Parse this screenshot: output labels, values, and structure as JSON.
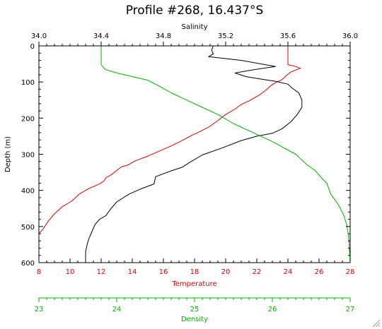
{
  "chart_data": {
    "type": "line",
    "title": "Profile #268, 16.437°S",
    "colors": {
      "temperature": "#dd0000",
      "salinity": "#000000",
      "density": "#00b000",
      "axis": "#000000"
    },
    "depth_axis": {
      "label": "Depth (m)",
      "ylim": [
        0,
        600
      ],
      "inverted": true,
      "ticks": [
        0,
        100,
        200,
        300,
        400,
        500,
        600
      ],
      "tick_labels": [
        "0",
        "100",
        "200",
        "300",
        "400",
        "500",
        "600"
      ]
    },
    "salinity_axis": {
      "label": "Salinity",
      "position": "top",
      "xlim": [
        34.0,
        36.0
      ],
      "ticks": [
        34.0,
        34.4,
        34.8,
        35.2,
        35.6,
        36.0
      ],
      "tick_labels": [
        "34.0",
        "34.4",
        "34.8",
        "35.2",
        "35.6",
        "36.0"
      ]
    },
    "temperature_axis": {
      "label": "Temperature",
      "position": "bottom",
      "xlim": [
        8,
        28
      ],
      "ticks": [
        8,
        10,
        12,
        14,
        16,
        18,
        20,
        22,
        24,
        26,
        28
      ],
      "tick_labels": [
        "8",
        "10",
        "12",
        "14",
        "16",
        "18",
        "20",
        "22",
        "24",
        "26",
        "28"
      ]
    },
    "density_axis": {
      "label": "Density",
      "position": "bottom-separate",
      "xlim": [
        23,
        27
      ],
      "ticks": [
        23,
        24,
        25,
        26,
        27
      ],
      "tick_labels": [
        "23",
        "24",
        "25",
        "26",
        "27"
      ]
    },
    "series": [
      {
        "key": "temperature",
        "axis": "temperature_axis",
        "points": [
          [
            24.0,
            0
          ],
          [
            24.0,
            5
          ],
          [
            24.0,
            25
          ],
          [
            24.0,
            52
          ],
          [
            24.5,
            57
          ],
          [
            24.8,
            62
          ],
          [
            24.2,
            72
          ],
          [
            23.9,
            82
          ],
          [
            23.6,
            94
          ],
          [
            23.2,
            102
          ],
          [
            22.9,
            110
          ],
          [
            22.6,
            122
          ],
          [
            22.2,
            135
          ],
          [
            21.6,
            150
          ],
          [
            21.0,
            162
          ],
          [
            20.6,
            175
          ],
          [
            20.0,
            190
          ],
          [
            19.4,
            210
          ],
          [
            18.9,
            225
          ],
          [
            18.3,
            238
          ],
          [
            17.8,
            248
          ],
          [
            17.2,
            262
          ],
          [
            16.6,
            275
          ],
          [
            15.8,
            290
          ],
          [
            15.0,
            305
          ],
          [
            14.2,
            318
          ],
          [
            13.7,
            330
          ],
          [
            13.3,
            335
          ],
          [
            13.0,
            345
          ],
          [
            12.6,
            358
          ],
          [
            12.3,
            365
          ],
          [
            12.2,
            373
          ],
          [
            12.0,
            380
          ],
          [
            11.2,
            395
          ],
          [
            10.6,
            410
          ],
          [
            10.1,
            430
          ],
          [
            9.5,
            445
          ],
          [
            9.0,
            465
          ],
          [
            8.6,
            485
          ],
          [
            8.3,
            505
          ],
          [
            8.0,
            520
          ]
        ]
      },
      {
        "key": "salinity",
        "axis": "salinity_axis",
        "points": [
          [
            35.12,
            0
          ],
          [
            35.11,
            12
          ],
          [
            35.12,
            22
          ],
          [
            35.09,
            30
          ],
          [
            35.3,
            40
          ],
          [
            35.52,
            57
          ],
          [
            35.38,
            66
          ],
          [
            35.26,
            75
          ],
          [
            35.33,
            85
          ],
          [
            35.43,
            92
          ],
          [
            35.52,
            98
          ],
          [
            35.6,
            106
          ],
          [
            35.63,
            118
          ],
          [
            35.67,
            130
          ],
          [
            35.69,
            150
          ],
          [
            35.69,
            170
          ],
          [
            35.66,
            190
          ],
          [
            35.62,
            210
          ],
          [
            35.56,
            230
          ],
          [
            35.5,
            242
          ],
          [
            35.4,
            250
          ],
          [
            35.3,
            262
          ],
          [
            35.18,
            282
          ],
          [
            35.05,
            302
          ],
          [
            34.97,
            322
          ],
          [
            34.92,
            336
          ],
          [
            34.85,
            346
          ],
          [
            34.75,
            362
          ],
          [
            34.74,
            382
          ],
          [
            34.66,
            395
          ],
          [
            34.58,
            410
          ],
          [
            34.5,
            432
          ],
          [
            34.46,
            452
          ],
          [
            34.43,
            470
          ],
          [
            34.39,
            480
          ],
          [
            34.36,
            495
          ],
          [
            34.34,
            515
          ],
          [
            34.32,
            535
          ],
          [
            34.31,
            550
          ],
          [
            34.3,
            570
          ],
          [
            34.3,
            600
          ]
        ]
      },
      {
        "key": "density",
        "axis": "density_axis",
        "points": [
          [
            23.8,
            0
          ],
          [
            23.8,
            30
          ],
          [
            23.8,
            52
          ],
          [
            23.85,
            65
          ],
          [
            24.0,
            75
          ],
          [
            24.2,
            85
          ],
          [
            24.4,
            95
          ],
          [
            24.55,
            112
          ],
          [
            24.7,
            130
          ],
          [
            24.9,
            150
          ],
          [
            25.1,
            170
          ],
          [
            25.3,
            190
          ],
          [
            25.5,
            215
          ],
          [
            25.75,
            240
          ],
          [
            26.0,
            265
          ],
          [
            26.3,
            300
          ],
          [
            26.45,
            330
          ],
          [
            26.55,
            345
          ],
          [
            26.65,
            370
          ],
          [
            26.7,
            380
          ],
          [
            26.75,
            410
          ],
          [
            26.85,
            440
          ],
          [
            26.92,
            470
          ],
          [
            26.96,
            500
          ],
          [
            26.98,
            530
          ],
          [
            27.0,
            600
          ]
        ]
      }
    ]
  }
}
